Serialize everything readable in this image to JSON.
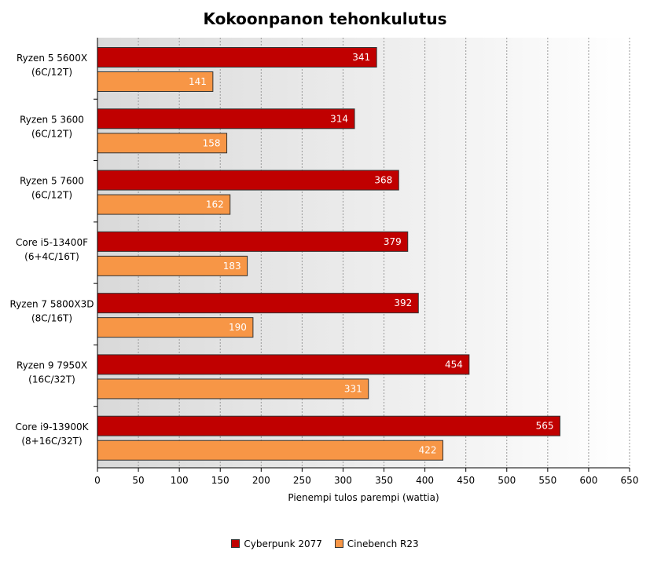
{
  "chart_data": {
    "type": "bar",
    "orientation": "horizontal",
    "title": "Kokoonpanon tehonkulutus",
    "xlabel": "Pienempi tulos parempi (wattia)",
    "xlim": [
      0,
      650
    ],
    "xticks": [
      "0",
      "50",
      "100",
      "150",
      "200",
      "250",
      "300",
      "350",
      "400",
      "450",
      "500",
      "550",
      "600",
      "650"
    ],
    "categories": [
      [
        "Ryzen 5 5600X",
        "(6C/12T)"
      ],
      [
        "Ryzen 5 3600",
        "(6C/12T)"
      ],
      [
        "Ryzen 5 7600",
        "(6C/12T)"
      ],
      [
        "Core i5-13400F",
        "(6+4C/16T)"
      ],
      [
        "Ryzen 7 5800X3D",
        "(8C/16T)"
      ],
      [
        "Ryzen 9 7950X",
        "(16C/32T)"
      ],
      [
        "Core i9-13900K",
        "(8+16C/32T)"
      ]
    ],
    "series": [
      {
        "name": "Cyberpunk 2077",
        "color": "#c00000",
        "values": [
          341,
          314,
          368,
          379,
          392,
          454,
          565
        ]
      },
      {
        "name": "Cinebench R23",
        "color": "#f79646",
        "values": [
          141,
          158,
          162,
          183,
          190,
          331,
          422
        ]
      }
    ],
    "grid": "vertical-dashed",
    "legend_position": "bottom"
  }
}
